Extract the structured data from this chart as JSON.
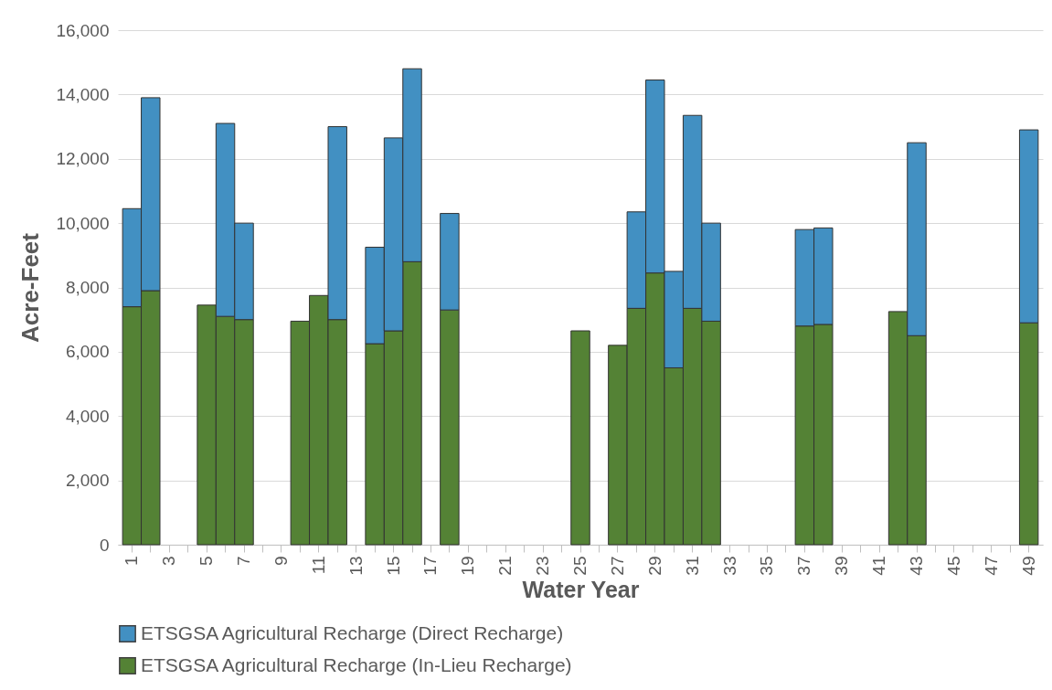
{
  "chart_data": {
    "type": "bar",
    "stacked": true,
    "xlabel": "Water Year",
    "ylabel": "Acre-Feet",
    "categories": [
      "1",
      null,
      "3",
      null,
      "5",
      null,
      "7",
      null,
      "9",
      null,
      "11",
      null,
      "13",
      null,
      "15",
      null,
      "17",
      null,
      "19",
      null,
      "21",
      null,
      "23",
      null,
      "25",
      null,
      "27",
      null,
      "29",
      null,
      "31",
      null,
      "33",
      null,
      "35",
      null,
      "37",
      null,
      "39",
      null,
      "41",
      null,
      "43",
      null,
      "45",
      null,
      "47",
      null,
      "49"
    ],
    "series": [
      {
        "name": "ETSGSA Agricultural Recharge (In-Lieu Recharge)",
        "color": "#548235",
        "values": [
          7400,
          7900,
          null,
          null,
          7450,
          7100,
          7000,
          null,
          null,
          6950,
          7750,
          7000,
          null,
          6250,
          6650,
          8800,
          null,
          7300,
          null,
          null,
          null,
          null,
          null,
          null,
          6650,
          null,
          6200,
          7350,
          8450,
          5500,
          7350,
          6950,
          null,
          null,
          null,
          null,
          6800,
          6850,
          null,
          null,
          null,
          7250,
          6500,
          null,
          null,
          null,
          null,
          null,
          6900
        ]
      },
      {
        "name": "ETSGSA Agricultural Recharge (Direct Recharge)",
        "color": "#4290c2",
        "values": [
          3050,
          6000,
          null,
          null,
          null,
          6000,
          3000,
          null,
          null,
          null,
          null,
          6000,
          null,
          3000,
          6000,
          6000,
          null,
          3000,
          null,
          null,
          null,
          null,
          null,
          null,
          null,
          null,
          null,
          3000,
          6000,
          3000,
          6000,
          3050,
          null,
          null,
          null,
          null,
          3000,
          3000,
          null,
          null,
          null,
          null,
          6000,
          null,
          null,
          null,
          null,
          null,
          6000
        ]
      }
    ],
    "ylim": [
      0,
      16000
    ],
    "yticks": [
      0,
      {
        "value": 2000,
        "label": "2,000"
      },
      {
        "value": 4000,
        "label": "4,000"
      },
      {
        "value": 6000,
        "label": "6,000"
      },
      {
        "value": 8000,
        "label": "8,000"
      },
      {
        "value": 10000,
        "label": "10,000"
      },
      {
        "value": 12000,
        "label": "12,000"
      },
      {
        "value": 14000,
        "label": "14,000"
      },
      {
        "value": 16000,
        "label": "16,000"
      }
    ],
    "grid": "y",
    "legend": "bottom"
  }
}
